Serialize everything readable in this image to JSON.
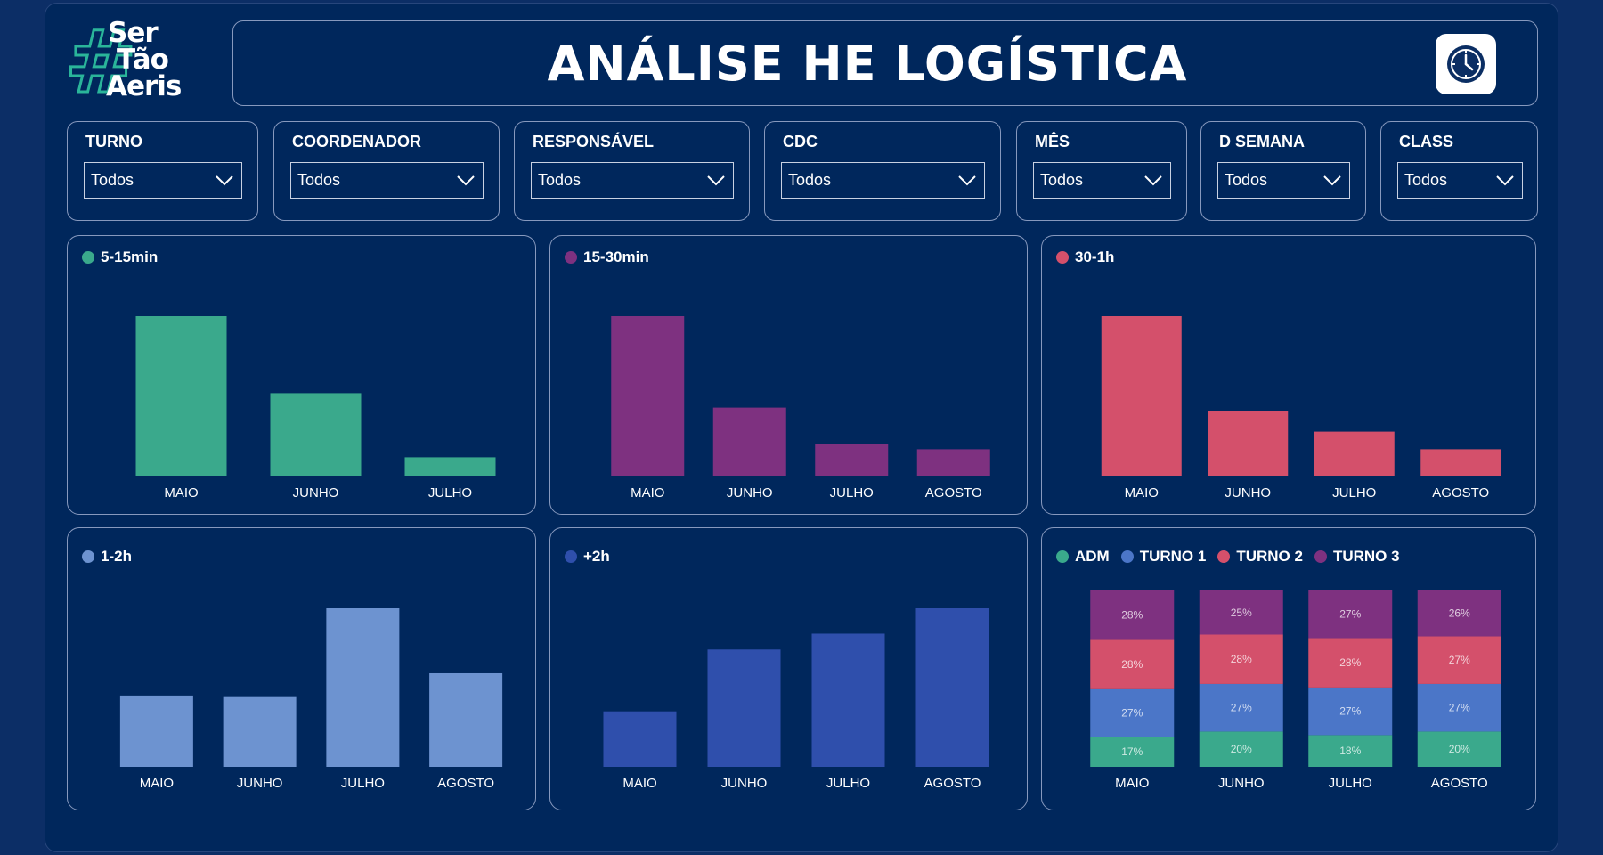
{
  "header": {
    "title": "ANÁLISE HE LOGÍSTICA",
    "logo": {
      "hash": "#",
      "line1": "Ser",
      "line2": "Tão",
      "line3": "Aeris"
    },
    "clock_icon": "clock-icon"
  },
  "filters": [
    {
      "label": "TURNO",
      "value": "Todos"
    },
    {
      "label": "COORDENADOR",
      "value": "Todos"
    },
    {
      "label": "RESPONSÁVEL",
      "value": "Todos"
    },
    {
      "label": "CDC",
      "value": "Todos"
    },
    {
      "label": "MÊS",
      "value": "Todos"
    },
    {
      "label": "D SEMANA",
      "value": "Todos"
    },
    {
      "label": "CLASS",
      "value": "Todos"
    }
  ],
  "colors": {
    "background": "#0c2e66",
    "panel": "#00275c",
    "adm": "#3aa98c",
    "turno1": "#4b76c8",
    "turno2": "#d4506b",
    "turno3": "#7e3180"
  },
  "chart_data": [
    {
      "type": "bar",
      "legend": "5-15min",
      "color": "#3aa98c",
      "categories": [
        "MAIO",
        "JUNHO",
        "JULHO"
      ],
      "values": [
        100,
        52,
        12
      ],
      "value_labels": [
        "",
        "",
        ""
      ]
    },
    {
      "type": "bar",
      "legend": "15-30min",
      "color": "#7e3180",
      "categories": [
        "MAIO",
        "JUNHO",
        "JULHO",
        "AGOSTO"
      ],
      "values": [
        100,
        43,
        20,
        17
      ],
      "value_labels": [
        "",
        "",
        "",
        ""
      ]
    },
    {
      "type": "bar",
      "legend": "30-1h",
      "color": "#d4506b",
      "categories": [
        "MAIO",
        "JUNHO",
        "JULHO",
        "AGOSTO"
      ],
      "values": [
        100,
        41,
        28,
        17
      ],
      "value_labels": [
        "",
        "",
        "",
        ""
      ]
    },
    {
      "type": "bar",
      "legend": "1-2h",
      "color": "#6d93d0",
      "categories": [
        "MAIO",
        "JUNHO",
        "JULHO",
        "AGOSTO"
      ],
      "values": [
        45,
        44,
        100,
        59
      ],
      "value_labels": [
        "",
        "",
        "",
        ""
      ]
    },
    {
      "type": "bar",
      "legend": "+2h",
      "color": "#2f4fac",
      "categories": [
        "MAIO",
        "JUNHO",
        "JULHO",
        "AGOSTO"
      ],
      "values": [
        35,
        74,
        84,
        100
      ],
      "value_labels": [
        "",
        "",
        "",
        ""
      ]
    },
    {
      "type": "bar",
      "stacked": true,
      "percent": true,
      "categories": [
        "MAIO",
        "JUNHO",
        "JULHO",
        "AGOSTO"
      ],
      "series": [
        {
          "name": "ADM",
          "color": "#3aa98c",
          "values": [
            17,
            20,
            18,
            20
          ]
        },
        {
          "name": "TURNO 1",
          "color": "#4b76c8",
          "values": [
            27,
            27,
            27,
            27
          ]
        },
        {
          "name": "TURNO 2",
          "color": "#d4506b",
          "values": [
            28,
            28,
            28,
            27
          ]
        },
        {
          "name": "TURNO 3",
          "color": "#7e3180",
          "values": [
            28,
            25,
            27,
            26
          ]
        }
      ]
    }
  ]
}
